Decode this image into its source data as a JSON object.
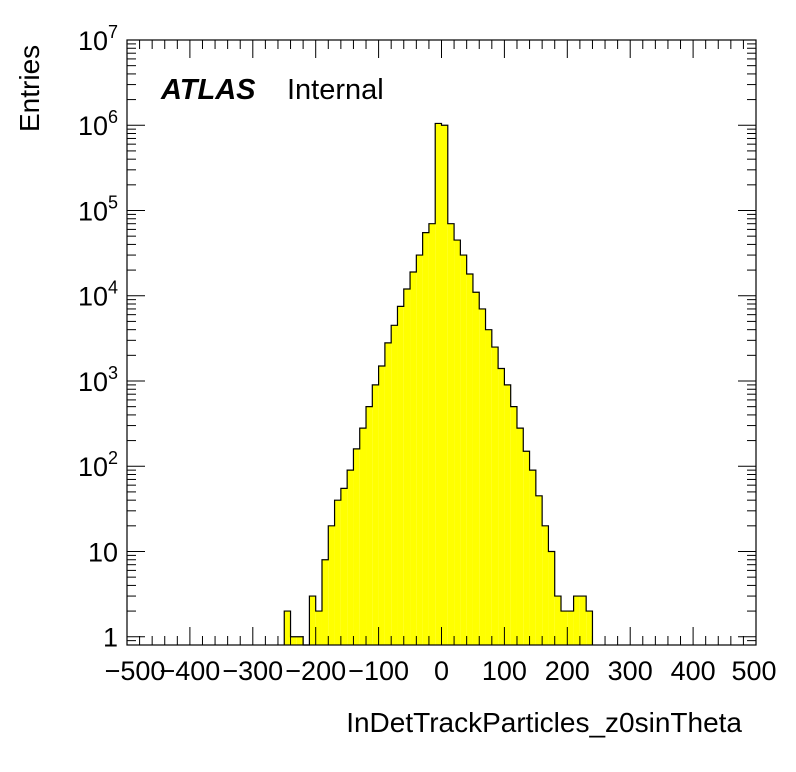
{
  "chart_data": {
    "type": "histogram",
    "xlabel": "InDetTrackParticles_z0sinTheta",
    "ylabel": "Entries",
    "label_bold": "ATLAS",
    "label_normal": "Internal",
    "xlim": [
      -500,
      500
    ],
    "ylim": [
      0.8,
      10000000
    ],
    "y_scale": "log",
    "grid": false,
    "fill_color": "#ffff00",
    "line_color": "#000000",
    "x_ticks": [
      "−500",
      "−400",
      "−300",
      "−200",
      "−100",
      "0",
      "100",
      "200",
      "300",
      "400",
      "500"
    ],
    "x_tick_values": [
      -500,
      -400,
      -300,
      -200,
      -100,
      0,
      100,
      200,
      300,
      400,
      500
    ],
    "y_ticks": [
      {
        "value": 1,
        "base": "1",
        "exp": ""
      },
      {
        "value": 10,
        "base": "10",
        "exp": ""
      },
      {
        "value": 100,
        "base": "10",
        "exp": "2"
      },
      {
        "value": 1000,
        "base": "10",
        "exp": "3"
      },
      {
        "value": 10000,
        "base": "10",
        "exp": "4"
      },
      {
        "value": 100000,
        "base": "10",
        "exp": "5"
      },
      {
        "value": 1000000,
        "base": "10",
        "exp": "6"
      },
      {
        "value": 10000000,
        "base": "10",
        "exp": "7"
      }
    ],
    "bin_edges": [
      -250,
      -240,
      -230,
      -220,
      -210,
      -200,
      -190,
      -180,
      -170,
      -160,
      -150,
      -140,
      -130,
      -120,
      -110,
      -100,
      -90,
      -80,
      -70,
      -60,
      -50,
      -40,
      -30,
      -20,
      -10,
      0,
      10,
      20,
      30,
      40,
      50,
      60,
      70,
      80,
      90,
      100,
      110,
      120,
      130,
      140,
      150,
      160,
      170,
      180,
      190,
      200,
      210,
      220,
      230,
      240
    ],
    "bin_values": [
      2,
      1,
      1,
      0,
      3,
      2,
      8,
      20,
      40,
      55,
      90,
      160,
      280,
      500,
      900,
      1500,
      2800,
      4500,
      7500,
      12000,
      19000,
      30000,
      55000,
      70000,
      1050000,
      1000000,
      70000,
      45000,
      30000,
      18000,
      11000,
      7000,
      4000,
      2500,
      1400,
      900,
      500,
      280,
      150,
      90,
      45,
      20,
      10,
      3,
      2,
      2,
      3,
      3,
      2
    ]
  }
}
